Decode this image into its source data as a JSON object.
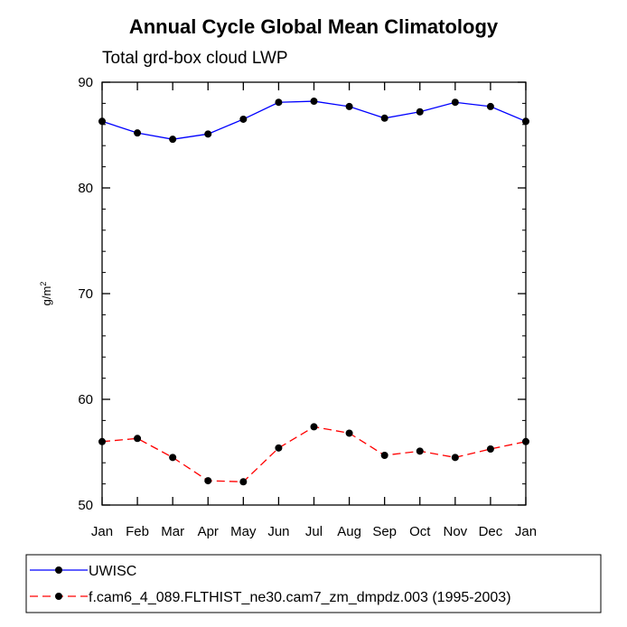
{
  "chart_data": {
    "type": "line",
    "title": "Annual Cycle Global Mean Climatology",
    "subtitle": "Total grd-box cloud LWP",
    "ylabel_base": "g/m",
    "ylabel_sup": "2",
    "xlabel": "",
    "categories": [
      "Jan",
      "Feb",
      "Mar",
      "Apr",
      "May",
      "Jun",
      "Jul",
      "Aug",
      "Sep",
      "Oct",
      "Nov",
      "Dec",
      "Jan"
    ],
    "ylim": [
      50,
      90
    ],
    "yticks": [
      50,
      60,
      70,
      80,
      90
    ],
    "series": [
      {
        "name": "UWISC",
        "color": "#0000ff",
        "dash": "solid",
        "values": [
          86.3,
          85.2,
          84.6,
          85.1,
          86.5,
          88.1,
          88.2,
          87.7,
          86.6,
          87.2,
          88.1,
          87.7,
          86.3
        ]
      },
      {
        "name": "f.cam6_4_089.FLTHIST_ne30.cam7_zm_dmpdz.003 (1995-2003)",
        "color": "#ff0000",
        "dash": "dashed",
        "values": [
          56.0,
          56.3,
          54.5,
          52.3,
          52.2,
          55.4,
          57.4,
          56.8,
          54.7,
          55.1,
          54.5,
          55.3,
          56.0
        ]
      }
    ],
    "legend_position": "bottom"
  }
}
